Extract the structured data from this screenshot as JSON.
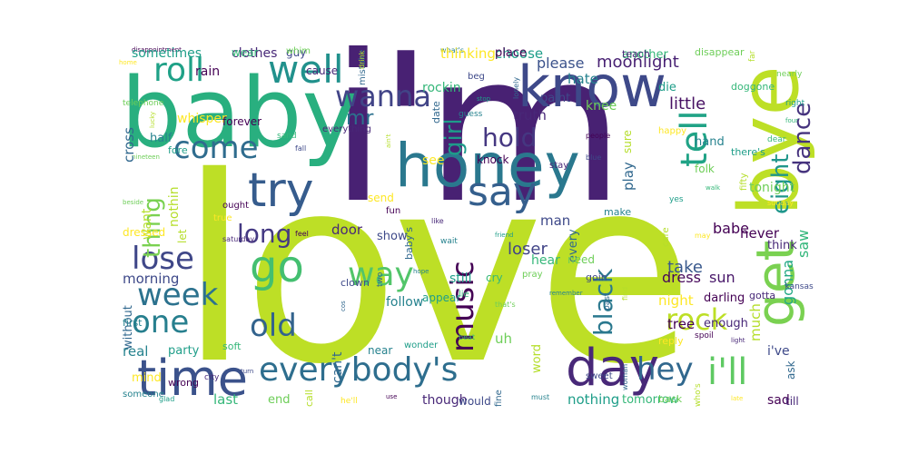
{
  "words": [
    {
      "text": "love",
      "color": "#bddf26"
    },
    {
      "text": "i'm",
      "color": "#482173"
    },
    {
      "text": "baby",
      "color": "#29af7f"
    },
    {
      "text": "know",
      "color": "#3e4989"
    },
    {
      "text": "bye",
      "color": "#bddf26"
    },
    {
      "text": "honey",
      "color": "#2a788e"
    },
    {
      "text": "get",
      "color": "#7ad151"
    },
    {
      "text": "day",
      "color": "#482878"
    },
    {
      "text": "time",
      "color": "#3b528b"
    },
    {
      "text": "say",
      "color": "#355f8d"
    },
    {
      "text": "everybody's",
      "color": "#2e6e8e"
    },
    {
      "text": "go",
      "color": "#44bf70"
    },
    {
      "text": "try",
      "color": "#365c8d"
    },
    {
      "text": "well",
      "color": "#21918c"
    },
    {
      "text": "roll",
      "color": "#1fa187"
    },
    {
      "text": "i'll",
      "color": "#5ec962"
    },
    {
      "text": "wanna",
      "color": "#414487"
    },
    {
      "text": "come",
      "color": "#2f6c8e"
    },
    {
      "text": "lose",
      "color": "#3f4788"
    },
    {
      "text": "week",
      "color": "#2c728e"
    },
    {
      "text": "one",
      "color": "#277f8e"
    },
    {
      "text": "old",
      "color": "#33638d"
    },
    {
      "text": "long",
      "color": "#443983"
    },
    {
      "text": "way",
      "color": "#52c569"
    },
    {
      "text": "music",
      "color": "#440154"
    },
    {
      "text": "hey",
      "color": "#31688e"
    },
    {
      "text": "rock",
      "color": "#bddf26"
    },
    {
      "text": "tell",
      "color": "#20a386"
    },
    {
      "text": "dance",
      "color": "#46337e"
    },
    {
      "text": "eight",
      "color": "#1f968b"
    },
    {
      "text": "hold",
      "color": "#453781"
    },
    {
      "text": "girl",
      "color": "#1e9b8a"
    },
    {
      "text": "thing",
      "color": "#7ad151"
    },
    {
      "text": "black",
      "color": "#2a788e"
    },
    {
      "text": "mr",
      "color": "#2c718e"
    },
    {
      "text": "gonna",
      "color": "#22a884"
    },
    {
      "text": "please",
      "color": "#3b528b"
    },
    {
      "text": "moonlight",
      "color": "#482173"
    },
    {
      "text": "little",
      "color": "#471063"
    },
    {
      "text": "dress",
      "color": "#46075a"
    },
    {
      "text": "sun",
      "color": "#481769"
    },
    {
      "text": "loser",
      "color": "#414487"
    },
    {
      "text": "take",
      "color": "#38588c"
    },
    {
      "text": "babe",
      "color": "#440154"
    },
    {
      "text": "saw",
      "color": "#32b67a"
    }
  ],
  "small_words": [
    "disappointment",
    "clothes",
    "guy",
    "mistake",
    "what's",
    "choose",
    "another",
    "disappear",
    "far",
    "home",
    "rain",
    "cause",
    "beg",
    "lonely",
    "hate",
    "die",
    "doggone",
    "nearly",
    "ain't",
    "see",
    "knock",
    "stay",
    "blue",
    "play",
    "hand",
    "there's",
    "dear",
    "nineteen",
    "nothin",
    "send",
    "fun",
    "like",
    "man",
    "every",
    "make",
    "yes",
    "walk",
    "tonight",
    "let",
    "true",
    "feel",
    "door",
    "show",
    "baby's",
    "wait",
    "friend",
    "hear",
    "need",
    "care",
    "may",
    "never",
    "think",
    "clown",
    "two",
    "hope",
    "still",
    "cry",
    "pray",
    "find",
    "night",
    "darling",
    "gotta",
    "kansas",
    "cos",
    "follow",
    "appear",
    "lie",
    "that's",
    "much",
    "mind",
    "wrong",
    "city",
    "turn",
    "can't",
    "near",
    "wonder",
    "beat",
    "uh",
    "word",
    "reply",
    "spoil",
    "light",
    "i've",
    "ask",
    "someone",
    "glad",
    "last",
    "end",
    "call",
    "he'll",
    "use",
    "though",
    "would",
    "fine",
    "must",
    "nothing",
    "tomorrow",
    "back",
    "who's",
    "late",
    "sad",
    "till",
    "sweet",
    "woman",
    "real",
    "party",
    "soft",
    "telephone",
    "lucky",
    "whisper",
    "forever",
    "everything",
    "fall",
    "cross",
    "half",
    "fore",
    "sand",
    "beside",
    "want",
    "dressed",
    "ought",
    "saturday",
    "morning",
    "without",
    "first",
    "right",
    "four",
    "knee",
    "sure",
    "happy",
    "people",
    "truth",
    "paint",
    "date",
    "guess",
    "stop",
    "rockin",
    "folk",
    "fifty",
    "sunday",
    "tree",
    "enough",
    "goin",
    "past",
    "remember",
    "sometimes",
    "wear",
    "whim",
    "drink",
    "thinking",
    "place",
    "teach"
  ],
  "colors": [
    "#440154",
    "#482878",
    "#3e4989",
    "#31688e",
    "#26828e",
    "#1f9e89",
    "#35b779",
    "#6ece58",
    "#b5de2b",
    "#fde725"
  ]
}
